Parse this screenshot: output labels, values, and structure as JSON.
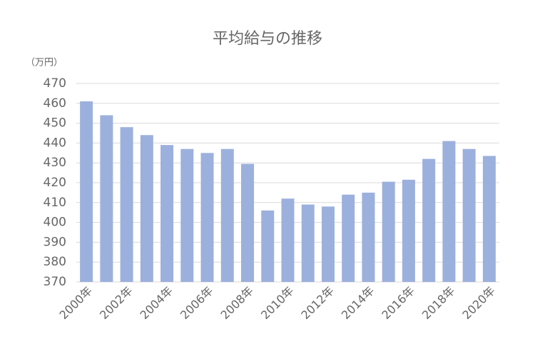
{
  "chart_data": {
    "type": "bar",
    "title": "平均給与の推移",
    "y_unit_label": "（万円）",
    "categories": [
      "2000年",
      null,
      "2002年",
      null,
      "2004年",
      null,
      "2006年",
      null,
      "2008年",
      null,
      "2010年",
      null,
      "2012年",
      null,
      "2014年",
      null,
      "2016年",
      null,
      "2018年",
      null,
      "2020年"
    ],
    "values": [
      461,
      454,
      448,
      444,
      439,
      437,
      435,
      437,
      429.5,
      406,
      412,
      409,
      408,
      414,
      415,
      420.5,
      421.5,
      432,
      441,
      437,
      433.5
    ],
    "color": "#9cb0dd",
    "ylim": [
      370,
      470
    ],
    "yticks": [
      370,
      380,
      390,
      400,
      410,
      420,
      430,
      440,
      450,
      460,
      470
    ],
    "grid": true
  }
}
